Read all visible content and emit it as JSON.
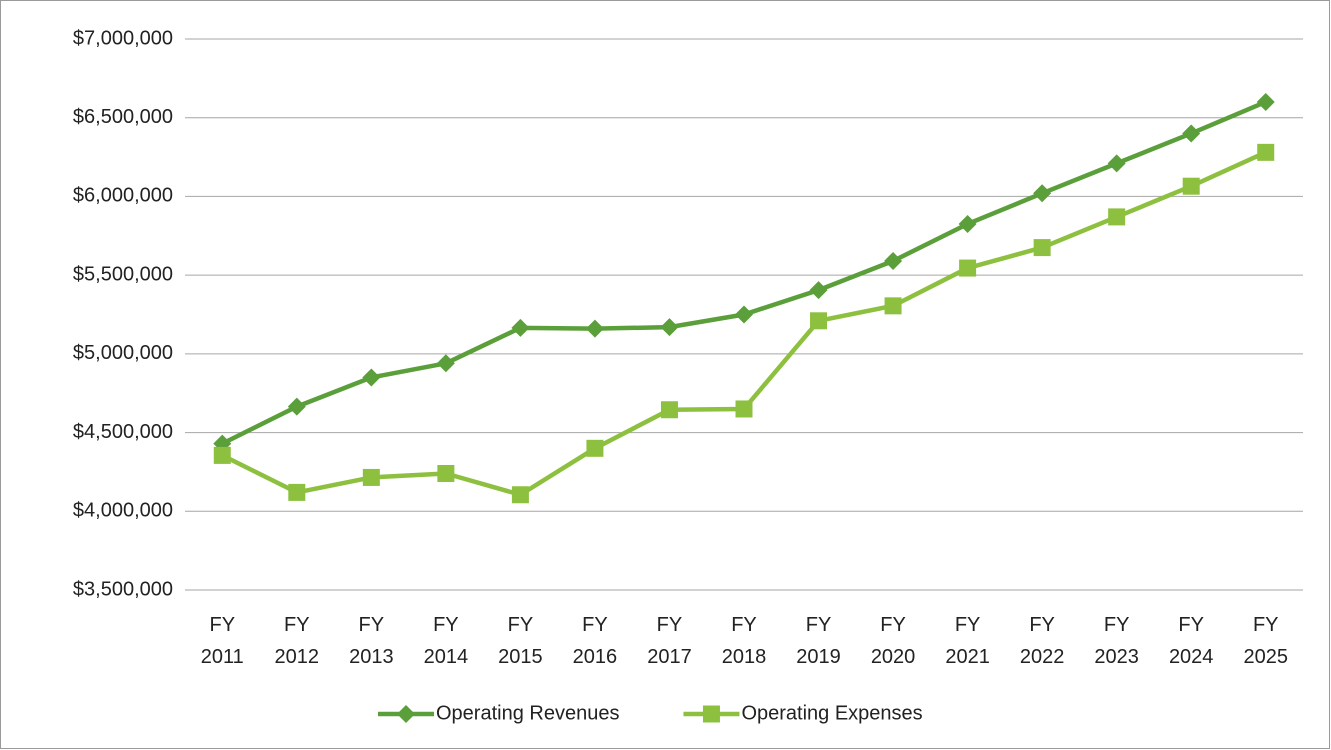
{
  "chart_data": {
    "type": "line",
    "categories": [
      "FY 2011",
      "FY 2012",
      "FY 2013",
      "FY 2014",
      "FY 2015",
      "FY 2016",
      "FY 2017",
      "FY 2018",
      "FY 2019",
      "FY 2020",
      "FY 2021",
      "FY 2022",
      "FY 2023",
      "FY 2024",
      "FY 2025"
    ],
    "series": [
      {
        "name": "Operating Revenues",
        "color": "#5b9f3b",
        "marker": "diamond",
        "values": [
          4430000,
          4665000,
          4850000,
          4940000,
          5165000,
          5160000,
          5170000,
          5250000,
          5405000,
          5590000,
          5825000,
          6020000,
          6210000,
          6400000,
          6600000
        ]
      },
      {
        "name": "Operating Expenses",
        "color": "#8dc03f",
        "marker": "square",
        "values": [
          4355000,
          4120000,
          4215000,
          4240000,
          4105000,
          4400000,
          4645000,
          4650000,
          5210000,
          5305000,
          5545000,
          5675000,
          5870000,
          6065000,
          6280000
        ]
      }
    ],
    "ylim": [
      3500000,
      7000000
    ],
    "yticks": [
      {
        "value": 3500000,
        "label": "$3,500,000"
      },
      {
        "value": 4000000,
        "label": "$4,000,000"
      },
      {
        "value": 4500000,
        "label": "$4,500,000"
      },
      {
        "value": 5000000,
        "label": "$5,000,000"
      },
      {
        "value": 5500000,
        "label": "$5,500,000"
      },
      {
        "value": 6000000,
        "label": "$6,000,000"
      },
      {
        "value": 6500000,
        "label": "$6,500,000"
      },
      {
        "value": 7000000,
        "label": "$7,000,000"
      }
    ],
    "grid": true,
    "legend": "bottom"
  }
}
